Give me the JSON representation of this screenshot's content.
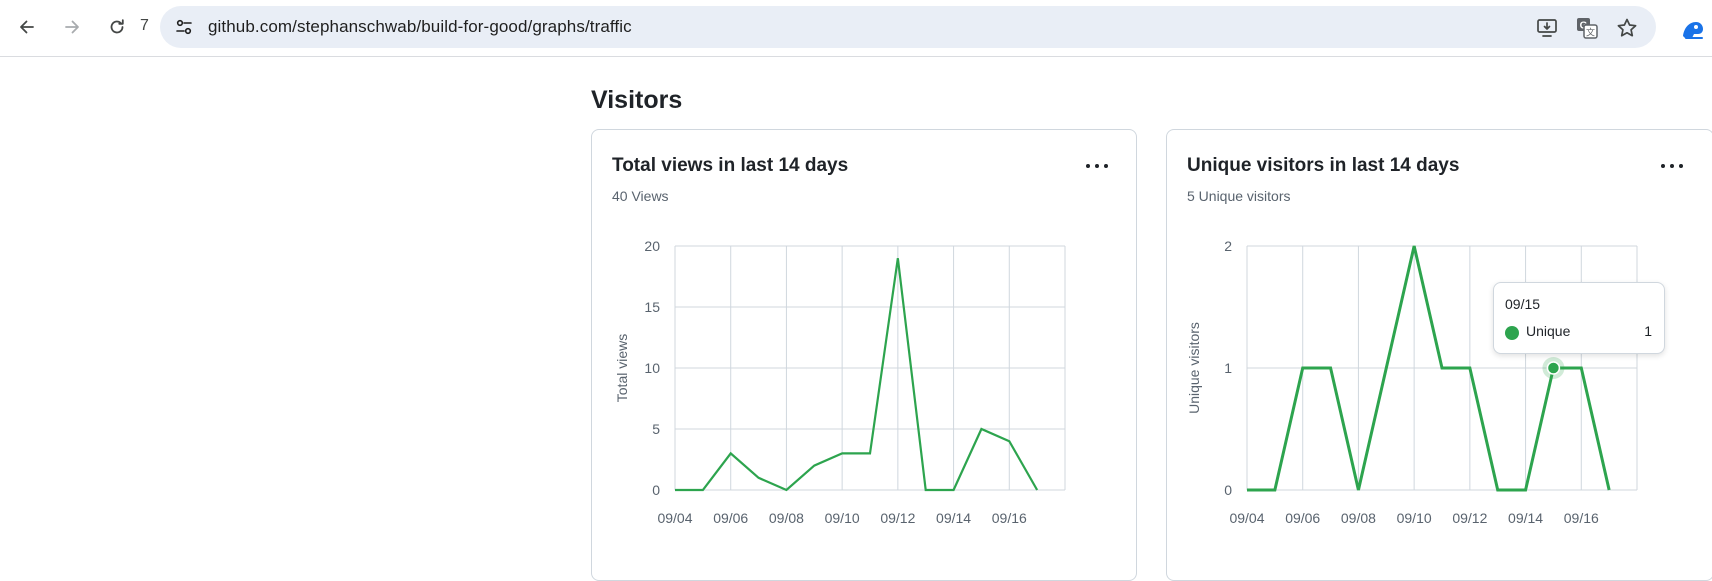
{
  "browser": {
    "reload_count": "7",
    "url": "github.com/stephanschwab/build-for-good/graphs/traffic",
    "icons": [
      "back-arrow-icon",
      "forward-arrow-icon",
      "reload-icon",
      "site-info-icon",
      "install-app-icon",
      "translate-icon",
      "bookmark-star-icon",
      "profile-icon"
    ]
  },
  "page": {
    "section_title": "Visitors"
  },
  "cards": [
    {
      "title": "Total views in last 14 days",
      "subtitle": "40 Views"
    },
    {
      "title": "Unique visitors in last 14 days",
      "subtitle": "5 Unique visitors"
    }
  ],
  "tooltip": {
    "date": "09/15",
    "label": "Unique",
    "value": "1",
    "color": "#2da44e"
  },
  "chart_data": [
    {
      "type": "line",
      "x": [
        "09/04",
        "09/05",
        "09/06",
        "09/07",
        "09/08",
        "09/09",
        "09/10",
        "09/11",
        "09/12",
        "09/13",
        "09/14",
        "09/15",
        "09/16",
        "09/17"
      ],
      "values": [
        0,
        0,
        3,
        1,
        0,
        2,
        3,
        3,
        19,
        0,
        0,
        5,
        4,
        0
      ],
      "x_ticks": [
        "09/04",
        "09/06",
        "09/08",
        "09/10",
        "09/12",
        "09/14",
        "09/16"
      ],
      "y_ticks": [
        "0",
        "5",
        "10",
        "15",
        "20"
      ],
      "ylim": [
        0,
        20
      ],
      "ylabel": "Total views",
      "grid": true,
      "color": "#2da44e"
    },
    {
      "type": "line",
      "x": [
        "09/04",
        "09/05",
        "09/06",
        "09/07",
        "09/08",
        "09/09",
        "09/10",
        "09/11",
        "09/12",
        "09/13",
        "09/14",
        "09/15",
        "09/16",
        "09/17"
      ],
      "values": [
        0,
        0,
        1,
        1,
        0,
        1,
        2,
        1,
        1,
        0,
        0,
        1,
        1,
        0
      ],
      "x_ticks": [
        "09/04",
        "09/06",
        "09/08",
        "09/10",
        "09/12",
        "09/14",
        "09/16"
      ],
      "y_ticks": [
        "0",
        "1",
        "2"
      ],
      "ylim": [
        0,
        2
      ],
      "ylabel": "Unique visitors",
      "grid": true,
      "color": "#2da44e",
      "highlight_x": "09/15"
    }
  ]
}
